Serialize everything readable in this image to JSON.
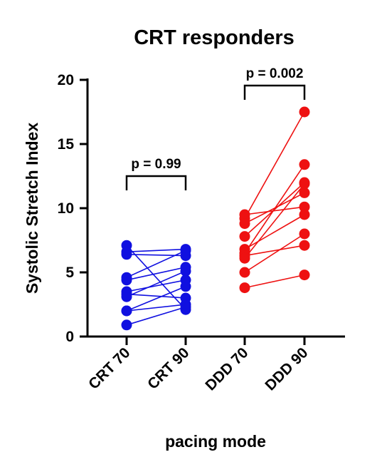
{
  "chart_data": {
    "type": "scatter",
    "title": "CRT responders",
    "xlabel": "pacing mode",
    "ylabel": "Systolic Stretch Index",
    "categories": [
      "CRT 70",
      "CRT 90",
      "DDD 70",
      "DDD 90"
    ],
    "ylim": [
      0,
      20
    ],
    "yticks": [
      "0",
      "5",
      "10",
      "15",
      "20"
    ],
    "grid": false,
    "groups": [
      {
        "pair": [
          0,
          1
        ],
        "color": "#1010e0",
        "pvalue": "p = 0.99",
        "pairs": [
          [
            7.1,
            2.1
          ],
          [
            6.6,
            6.8
          ],
          [
            6.4,
            6.3
          ],
          [
            4.6,
            6.7
          ],
          [
            4.4,
            5.4
          ],
          [
            3.5,
            4.4
          ],
          [
            3.3,
            3.0
          ],
          [
            3.1,
            5.1
          ],
          [
            2.0,
            2.5
          ],
          [
            2.0,
            3.9
          ],
          [
            0.9,
            2.3
          ]
        ]
      },
      {
        "pair": [
          2,
          3
        ],
        "color": "#ee1111",
        "pvalue": "p = 0.002",
        "pairs": [
          [
            9.5,
            10.1
          ],
          [
            9.2,
            17.5
          ],
          [
            8.8,
            11.2
          ],
          [
            7.8,
            12.0
          ],
          [
            6.8,
            9.5
          ],
          [
            6.5,
            13.4
          ],
          [
            6.3,
            7.1
          ],
          [
            6.1,
            11.9
          ],
          [
            5.0,
            8.0
          ],
          [
            3.8,
            4.8
          ]
        ]
      }
    ]
  }
}
